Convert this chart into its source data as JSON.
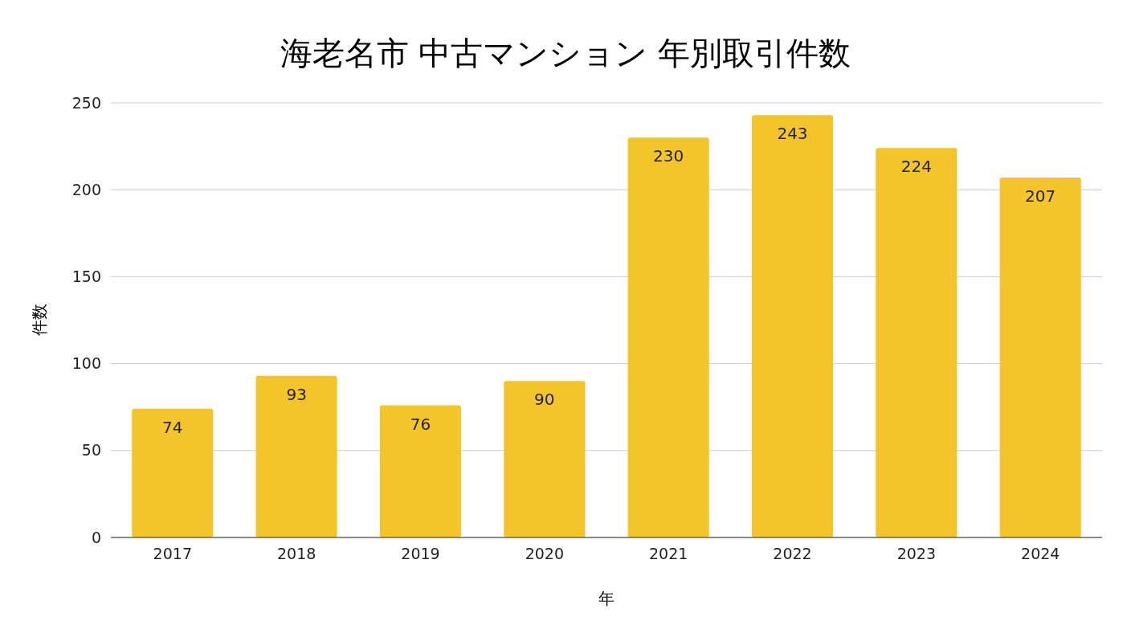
{
  "chart_data": {
    "type": "bar",
    "title": "海老名市 中古マンション 年別取引件数",
    "xlabel": "年",
    "ylabel": "件数",
    "categories": [
      "2017",
      "2018",
      "2019",
      "2020",
      "2021",
      "2022",
      "2023",
      "2024"
    ],
    "values": [
      74,
      93,
      76,
      90,
      230,
      243,
      224,
      207
    ],
    "color": "#f3c52a",
    "ylim": [
      0,
      250
    ],
    "yticks": [
      0,
      50,
      100,
      150,
      200,
      250
    ],
    "grid": "y",
    "data_labels": true
  }
}
